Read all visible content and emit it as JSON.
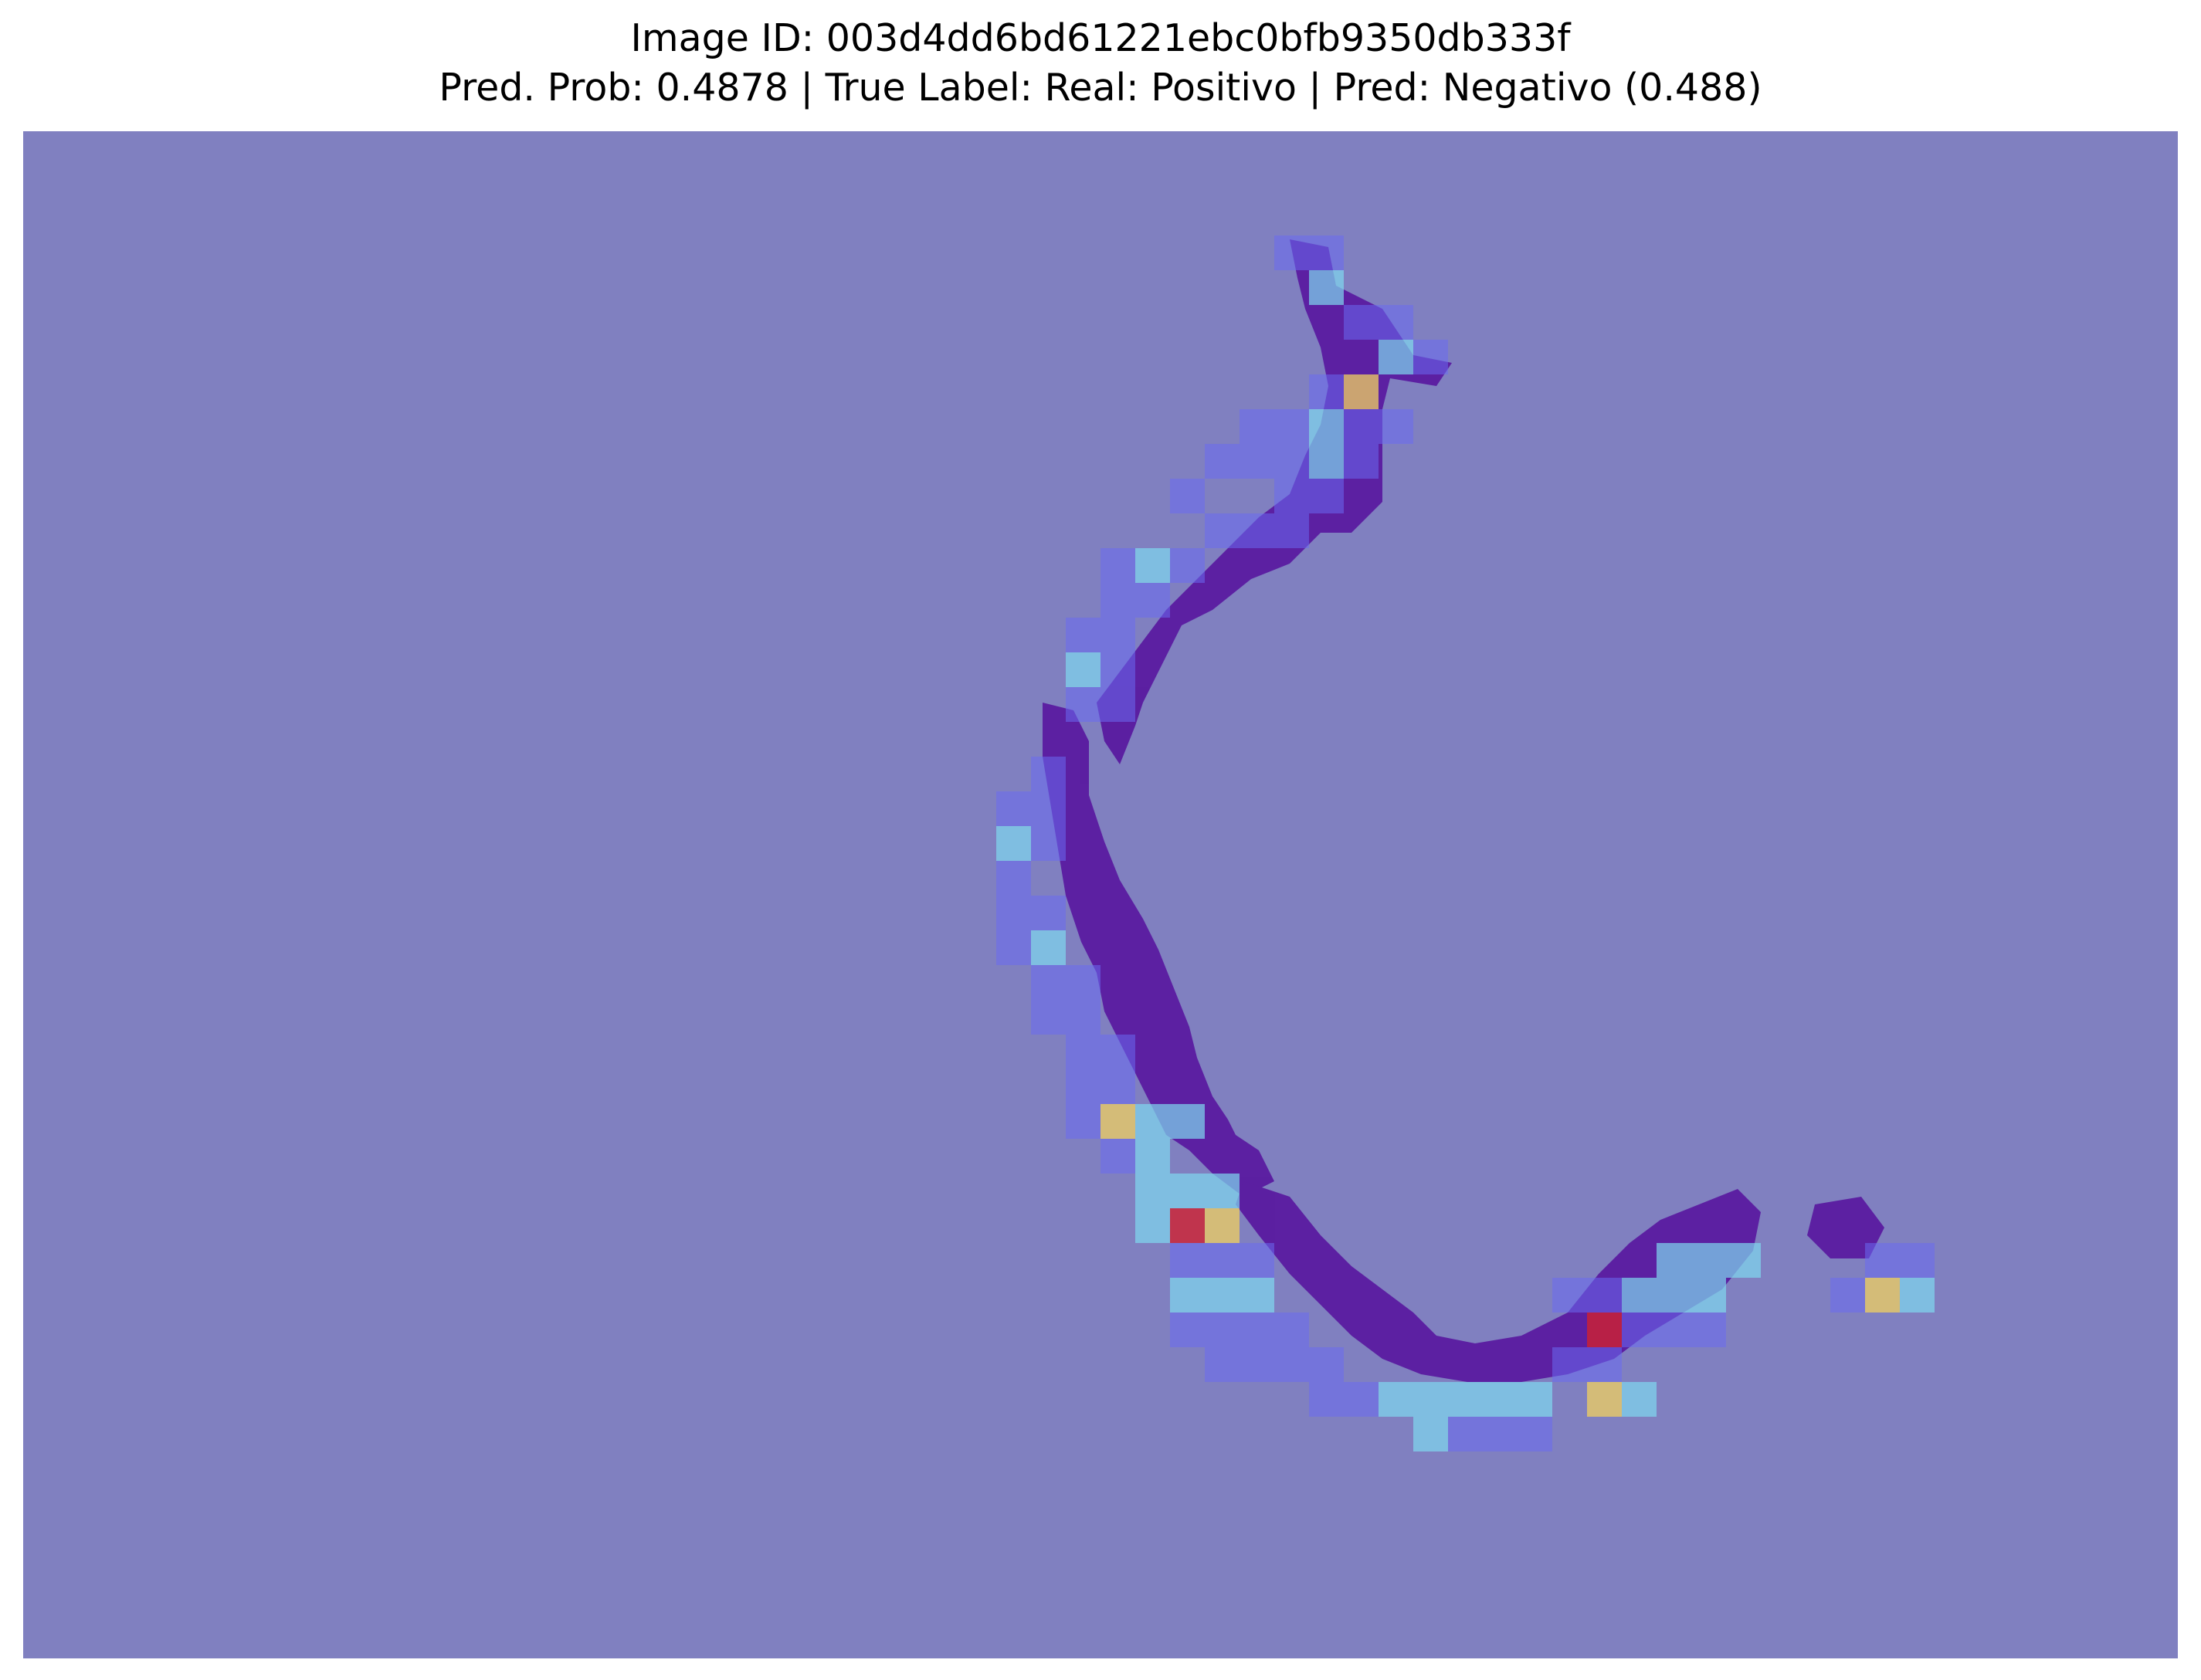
{
  "title": {
    "line1": "Image ID: 003d4dd6bd61221ebc0bfb9350db333f",
    "line2": "Pred. Prob: 0.4878 | True Label: Real: Positivo | Pred: Negativo (0.488)"
  },
  "colors": {
    "background_overlay": "#8080c0",
    "tissue": "#5a1aa0",
    "heat_low": "#6a6af0",
    "heat_mid": "#7fd8f0",
    "heat_high": "#f0d060",
    "heat_peak": "#d02030"
  }
}
